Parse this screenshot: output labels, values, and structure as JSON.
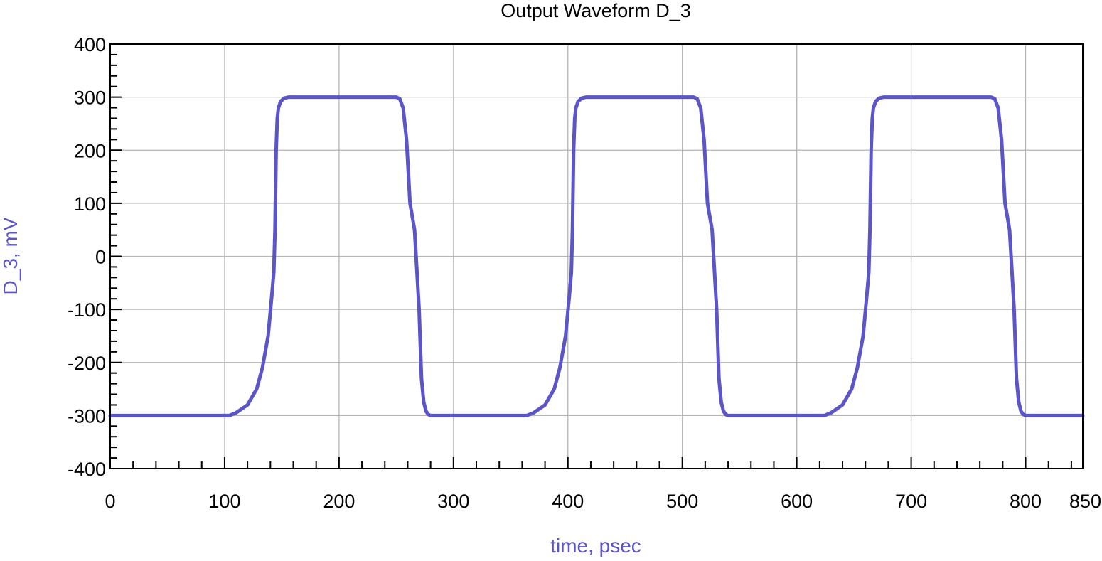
{
  "chart_data": {
    "type": "line",
    "title": "Output Waveform D_3",
    "xlabel": "time, psec",
    "ylabel": "D_3, mV",
    "xlim": [
      0,
      850
    ],
    "ylim": [
      -400,
      400
    ],
    "x_ticks": [
      0,
      100,
      200,
      300,
      400,
      500,
      600,
      700,
      800,
      850
    ],
    "y_ticks": [
      -400,
      -300,
      -200,
      -100,
      0,
      100,
      200,
      300,
      400
    ],
    "x_tick_labels": [
      "0",
      "100",
      "200",
      "300",
      "400",
      "500",
      "600",
      "700",
      "800",
      "850"
    ],
    "y_tick_labels": [
      "-400",
      "-300",
      "-200",
      "-100",
      "0",
      "100",
      "200",
      "300",
      "400"
    ],
    "grid": true,
    "colors": {
      "series": "#5b55c8",
      "axis_label": "#5b55c8",
      "grid": "#b4b4b4",
      "axes": "#000000"
    },
    "series": [
      {
        "color": "#5b55c8",
        "x": [
          0,
          104,
          110,
          120,
          128,
          133,
          138,
          141,
          143,
          144,
          145,
          146,
          147,
          149,
          152,
          156,
          250,
          253,
          256,
          259,
          262,
          266,
          270,
          272,
          274,
          276,
          278,
          280,
          284,
          290,
          364,
          370,
          380,
          388,
          393,
          398,
          401,
          403,
          404,
          405,
          406,
          407,
          409,
          412,
          416,
          510,
          513,
          516,
          519,
          522,
          526,
          530,
          532,
          534,
          536,
          538,
          540,
          544,
          550,
          624,
          630,
          640,
          648,
          653,
          658,
          661,
          663,
          664,
          665,
          666,
          667,
          669,
          672,
          676,
          770,
          773,
          776,
          779,
          782,
          786,
          790,
          792,
          794,
          796,
          798,
          800,
          804,
          810,
          850
        ],
        "y": [
          -300,
          -300,
          -295,
          -280,
          -250,
          -210,
          -150,
          -80,
          -30,
          50,
          200,
          260,
          280,
          292,
          298,
          300,
          300,
          297,
          280,
          220,
          100,
          50,
          -100,
          -230,
          -275,
          -292,
          -298,
          -300,
          -300,
          -300,
          -300,
          -295,
          -280,
          -250,
          -210,
          -150,
          -80,
          -30,
          50,
          200,
          260,
          280,
          292,
          298,
          300,
          300,
          297,
          280,
          220,
          100,
          50,
          -100,
          -230,
          -275,
          -292,
          -298,
          -300,
          -300,
          -300,
          -300,
          -295,
          -280,
          -250,
          -210,
          -150,
          -80,
          -30,
          50,
          200,
          260,
          280,
          292,
          298,
          300,
          300,
          297,
          280,
          220,
          100,
          50,
          -100,
          -230,
          -275,
          -292,
          -298,
          -300,
          -300,
          -300,
          -300
        ]
      }
    ]
  }
}
